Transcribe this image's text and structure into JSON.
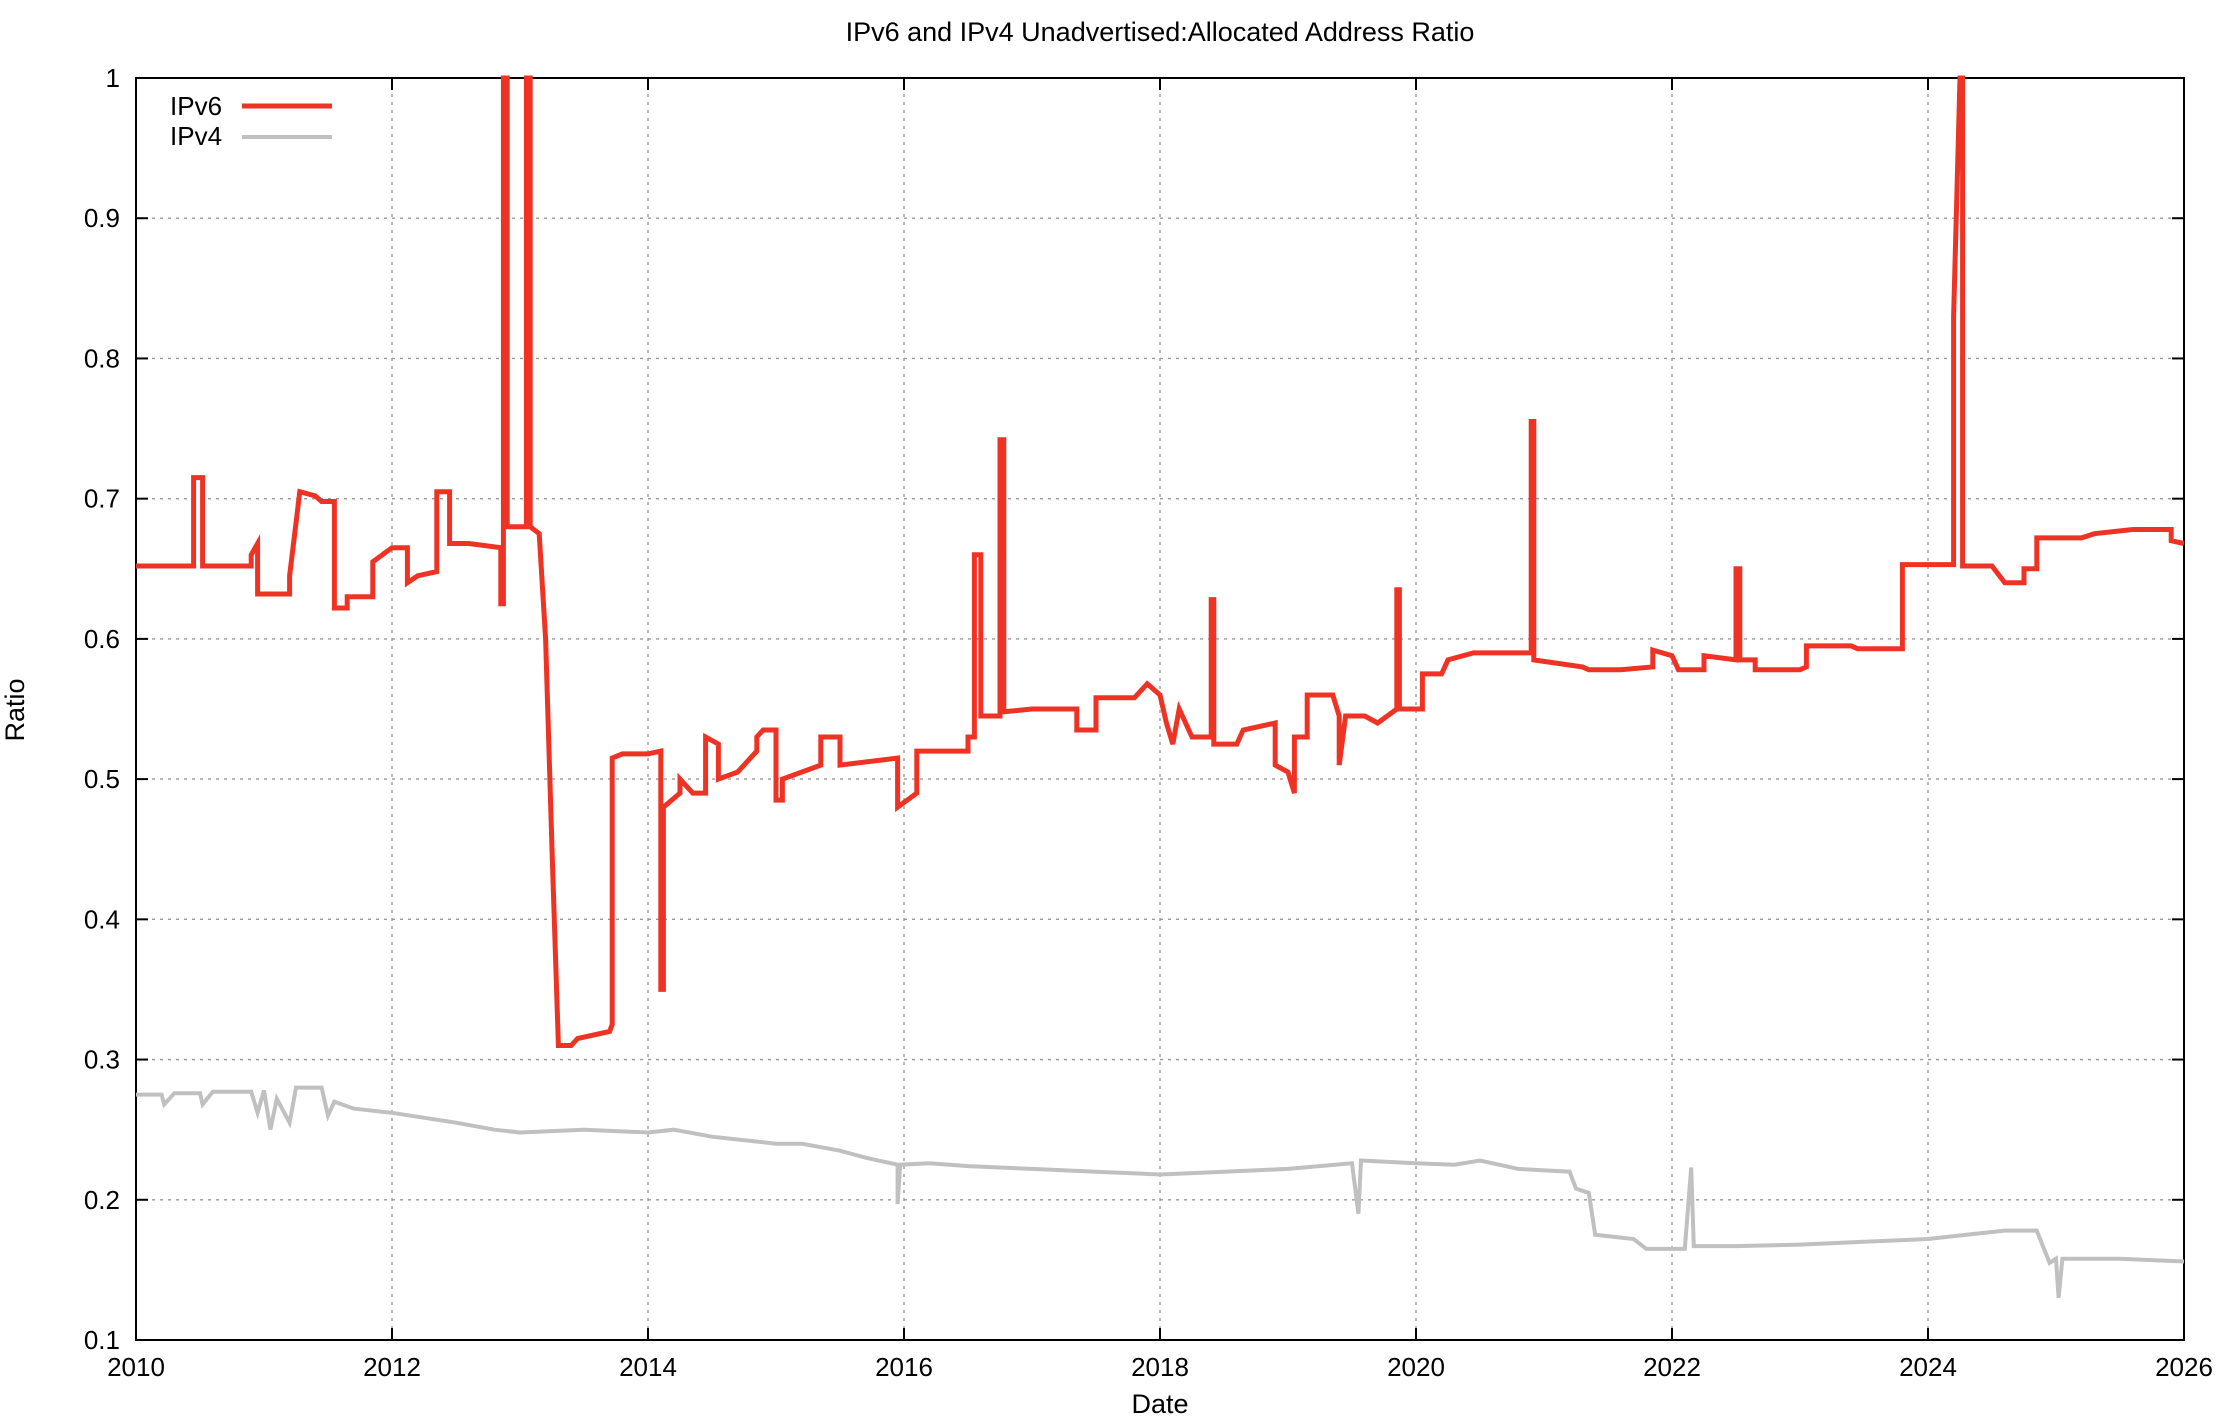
{
  "chart_data": {
    "type": "line",
    "title": "IPv6 and IPv4 Unadvertised:Allocated Address Ratio",
    "xlabel": "Date",
    "ylabel": "Ratio",
    "xlim": [
      2010,
      2026
    ],
    "ylim": [
      0.1,
      1
    ],
    "x_ticks": [
      "2010",
      "2012",
      "2014",
      "2016",
      "2018",
      "2020",
      "2022",
      "2024",
      "2026"
    ],
    "y_ticks": [
      "0.1",
      "0.2",
      "0.3",
      "0.4",
      "0.5",
      "0.6",
      "0.7",
      "0.8",
      "0.9",
      "1"
    ],
    "grid": true,
    "legend_position": "top-left",
    "series": [
      {
        "name": "IPv6",
        "color": "#ee3325",
        "points": [
          [
            2010.0,
            0.652
          ],
          [
            2010.45,
            0.652
          ],
          [
            2010.45,
            0.715
          ],
          [
            2010.52,
            0.715
          ],
          [
            2010.52,
            0.652
          ],
          [
            2010.9,
            0.652
          ],
          [
            2010.9,
            0.66
          ],
          [
            2010.95,
            0.668
          ],
          [
            2010.95,
            0.632
          ],
          [
            2011.2,
            0.632
          ],
          [
            2011.2,
            0.645
          ],
          [
            2011.28,
            0.705
          ],
          [
            2011.4,
            0.702
          ],
          [
            2011.45,
            0.698
          ],
          [
            2011.55,
            0.698
          ],
          [
            2011.55,
            0.622
          ],
          [
            2011.65,
            0.622
          ],
          [
            2011.65,
            0.63
          ],
          [
            2011.85,
            0.63
          ],
          [
            2011.85,
            0.655
          ],
          [
            2012.0,
            0.665
          ],
          [
            2012.12,
            0.665
          ],
          [
            2012.12,
            0.64
          ],
          [
            2012.2,
            0.645
          ],
          [
            2012.35,
            0.648
          ],
          [
            2012.35,
            0.705
          ],
          [
            2012.45,
            0.705
          ],
          [
            2012.45,
            0.668
          ],
          [
            2012.6,
            0.668
          ],
          [
            2012.85,
            0.665
          ],
          [
            2012.85,
            0.625
          ],
          [
            2012.87,
            0.625
          ],
          [
            2012.87,
            1.0
          ],
          [
            2012.9,
            1.0
          ],
          [
            2012.9,
            0.68
          ],
          [
            2013.05,
            0.68
          ],
          [
            2013.05,
            1.0
          ],
          [
            2013.08,
            1.0
          ],
          [
            2013.08,
            0.68
          ],
          [
            2013.15,
            0.675
          ],
          [
            2013.2,
            0.6
          ],
          [
            2013.25,
            0.45
          ],
          [
            2013.3,
            0.31
          ],
          [
            2013.4,
            0.31
          ],
          [
            2013.45,
            0.315
          ],
          [
            2013.7,
            0.32
          ],
          [
            2013.72,
            0.325
          ],
          [
            2013.72,
            0.515
          ],
          [
            2013.8,
            0.518
          ],
          [
            2014.0,
            0.518
          ],
          [
            2014.1,
            0.52
          ],
          [
            2014.1,
            0.35
          ],
          [
            2014.12,
            0.35
          ],
          [
            2014.12,
            0.48
          ],
          [
            2014.25,
            0.49
          ],
          [
            2014.25,
            0.5
          ],
          [
            2014.35,
            0.49
          ],
          [
            2014.45,
            0.49
          ],
          [
            2014.45,
            0.53
          ],
          [
            2014.55,
            0.525
          ],
          [
            2014.55,
            0.5
          ],
          [
            2014.7,
            0.505
          ],
          [
            2014.85,
            0.52
          ],
          [
            2014.85,
            0.53
          ],
          [
            2014.9,
            0.535
          ],
          [
            2015.0,
            0.535
          ],
          [
            2015.0,
            0.485
          ],
          [
            2015.05,
            0.485
          ],
          [
            2015.05,
            0.5
          ],
          [
            2015.35,
            0.51
          ],
          [
            2015.35,
            0.53
          ],
          [
            2015.5,
            0.53
          ],
          [
            2015.5,
            0.51
          ],
          [
            2015.95,
            0.515
          ],
          [
            2015.95,
            0.48
          ],
          [
            2016.1,
            0.49
          ],
          [
            2016.1,
            0.52
          ],
          [
            2016.5,
            0.52
          ],
          [
            2016.5,
            0.53
          ],
          [
            2016.55,
            0.53
          ],
          [
            2016.55,
            0.66
          ],
          [
            2016.6,
            0.66
          ],
          [
            2016.6,
            0.545
          ],
          [
            2016.75,
            0.545
          ],
          [
            2016.75,
            0.742
          ],
          [
            2016.78,
            0.742
          ],
          [
            2016.78,
            0.548
          ],
          [
            2017.0,
            0.55
          ],
          [
            2017.35,
            0.55
          ],
          [
            2017.35,
            0.535
          ],
          [
            2017.5,
            0.535
          ],
          [
            2017.5,
            0.558
          ],
          [
            2017.8,
            0.558
          ],
          [
            2017.9,
            0.568
          ],
          [
            2018.0,
            0.56
          ],
          [
            2018.05,
            0.54
          ],
          [
            2018.1,
            0.525
          ],
          [
            2018.15,
            0.55
          ],
          [
            2018.25,
            0.53
          ],
          [
            2018.4,
            0.53
          ],
          [
            2018.4,
            0.628
          ],
          [
            2018.42,
            0.628
          ],
          [
            2018.42,
            0.525
          ],
          [
            2018.6,
            0.525
          ],
          [
            2018.65,
            0.535
          ],
          [
            2018.9,
            0.54
          ],
          [
            2018.9,
            0.51
          ],
          [
            2019.0,
            0.505
          ],
          [
            2019.05,
            0.49
          ],
          [
            2019.05,
            0.53
          ],
          [
            2019.15,
            0.53
          ],
          [
            2019.15,
            0.56
          ],
          [
            2019.35,
            0.56
          ],
          [
            2019.4,
            0.545
          ],
          [
            2019.4,
            0.51
          ],
          [
            2019.45,
            0.545
          ],
          [
            2019.6,
            0.545
          ],
          [
            2019.7,
            0.54
          ],
          [
            2019.85,
            0.55
          ],
          [
            2019.85,
            0.635
          ],
          [
            2019.87,
            0.635
          ],
          [
            2019.87,
            0.55
          ],
          [
            2020.05,
            0.55
          ],
          [
            2020.05,
            0.575
          ],
          [
            2020.2,
            0.575
          ],
          [
            2020.25,
            0.585
          ],
          [
            2020.45,
            0.59
          ],
          [
            2020.9,
            0.59
          ],
          [
            2020.9,
            0.755
          ],
          [
            2020.92,
            0.755
          ],
          [
            2020.92,
            0.585
          ],
          [
            2021.3,
            0.58
          ],
          [
            2021.35,
            0.578
          ],
          [
            2021.6,
            0.578
          ],
          [
            2021.85,
            0.58
          ],
          [
            2021.85,
            0.592
          ],
          [
            2022.0,
            0.588
          ],
          [
            2022.05,
            0.578
          ],
          [
            2022.25,
            0.578
          ],
          [
            2022.25,
            0.588
          ],
          [
            2022.5,
            0.585
          ],
          [
            2022.5,
            0.65
          ],
          [
            2022.53,
            0.65
          ],
          [
            2022.53,
            0.585
          ],
          [
            2022.65,
            0.585
          ],
          [
            2022.65,
            0.578
          ],
          [
            2023.0,
            0.578
          ],
          [
            2023.05,
            0.58
          ],
          [
            2023.05,
            0.595
          ],
          [
            2023.4,
            0.595
          ],
          [
            2023.45,
            0.593
          ],
          [
            2023.8,
            0.593
          ],
          [
            2023.8,
            0.653
          ],
          [
            2024.2,
            0.653
          ],
          [
            2024.2,
            0.83
          ],
          [
            2024.25,
            1.0
          ],
          [
            2024.27,
            1.0
          ],
          [
            2024.27,
            0.652
          ],
          [
            2024.5,
            0.652
          ],
          [
            2024.6,
            0.64
          ],
          [
            2024.75,
            0.64
          ],
          [
            2024.75,
            0.65
          ],
          [
            2024.85,
            0.65
          ],
          [
            2024.85,
            0.672
          ],
          [
            2025.2,
            0.672
          ],
          [
            2025.3,
            0.675
          ],
          [
            2025.6,
            0.678
          ],
          [
            2025.9,
            0.678
          ],
          [
            2025.9,
            0.67
          ],
          [
            2026.0,
            0.668
          ]
        ]
      },
      {
        "name": "IPv4",
        "color": "#c0c0c0",
        "points": [
          [
            2010.0,
            0.275
          ],
          [
            2010.2,
            0.275
          ],
          [
            2010.22,
            0.268
          ],
          [
            2010.3,
            0.276
          ],
          [
            2010.5,
            0.276
          ],
          [
            2010.52,
            0.268
          ],
          [
            2010.6,
            0.277
          ],
          [
            2010.9,
            0.277
          ],
          [
            2010.95,
            0.262
          ],
          [
            2011.0,
            0.278
          ],
          [
            2011.05,
            0.25
          ],
          [
            2011.1,
            0.272
          ],
          [
            2011.2,
            0.255
          ],
          [
            2011.25,
            0.28
          ],
          [
            2011.35,
            0.28
          ],
          [
            2011.45,
            0.28
          ],
          [
            2011.5,
            0.26
          ],
          [
            2011.55,
            0.27
          ],
          [
            2011.7,
            0.265
          ],
          [
            2012.0,
            0.262
          ],
          [
            2012.5,
            0.255
          ],
          [
            2012.8,
            0.25
          ],
          [
            2013.0,
            0.248
          ],
          [
            2013.5,
            0.25
          ],
          [
            2014.0,
            0.248
          ],
          [
            2014.2,
            0.25
          ],
          [
            2014.5,
            0.245
          ],
          [
            2014.7,
            0.243
          ],
          [
            2015.0,
            0.24
          ],
          [
            2015.2,
            0.24
          ],
          [
            2015.5,
            0.235
          ],
          [
            2015.7,
            0.23
          ],
          [
            2015.95,
            0.225
          ],
          [
            2015.95,
            0.197
          ],
          [
            2015.97,
            0.225
          ],
          [
            2016.2,
            0.226
          ],
          [
            2016.5,
            0.224
          ],
          [
            2017.0,
            0.222
          ],
          [
            2017.5,
            0.22
          ],
          [
            2018.0,
            0.218
          ],
          [
            2018.5,
            0.22
          ],
          [
            2019.0,
            0.222
          ],
          [
            2019.5,
            0.226
          ],
          [
            2019.55,
            0.19
          ],
          [
            2019.57,
            0.228
          ],
          [
            2020.0,
            0.226
          ],
          [
            2020.3,
            0.225
          ],
          [
            2020.5,
            0.228
          ],
          [
            2020.8,
            0.222
          ],
          [
            2021.2,
            0.22
          ],
          [
            2021.25,
            0.208
          ],
          [
            2021.35,
            0.205
          ],
          [
            2021.4,
            0.175
          ],
          [
            2021.7,
            0.172
          ],
          [
            2021.8,
            0.165
          ],
          [
            2022.1,
            0.165
          ],
          [
            2022.15,
            0.223
          ],
          [
            2022.17,
            0.167
          ],
          [
            2022.5,
            0.167
          ],
          [
            2023.0,
            0.168
          ],
          [
            2023.5,
            0.17
          ],
          [
            2024.0,
            0.172
          ],
          [
            2024.3,
            0.175
          ],
          [
            2024.6,
            0.178
          ],
          [
            2024.85,
            0.178
          ],
          [
            2024.95,
            0.155
          ],
          [
            2025.0,
            0.158
          ],
          [
            2025.02,
            0.13
          ],
          [
            2025.05,
            0.158
          ],
          [
            2025.5,
            0.158
          ],
          [
            2026.0,
            0.156
          ]
        ]
      }
    ]
  }
}
